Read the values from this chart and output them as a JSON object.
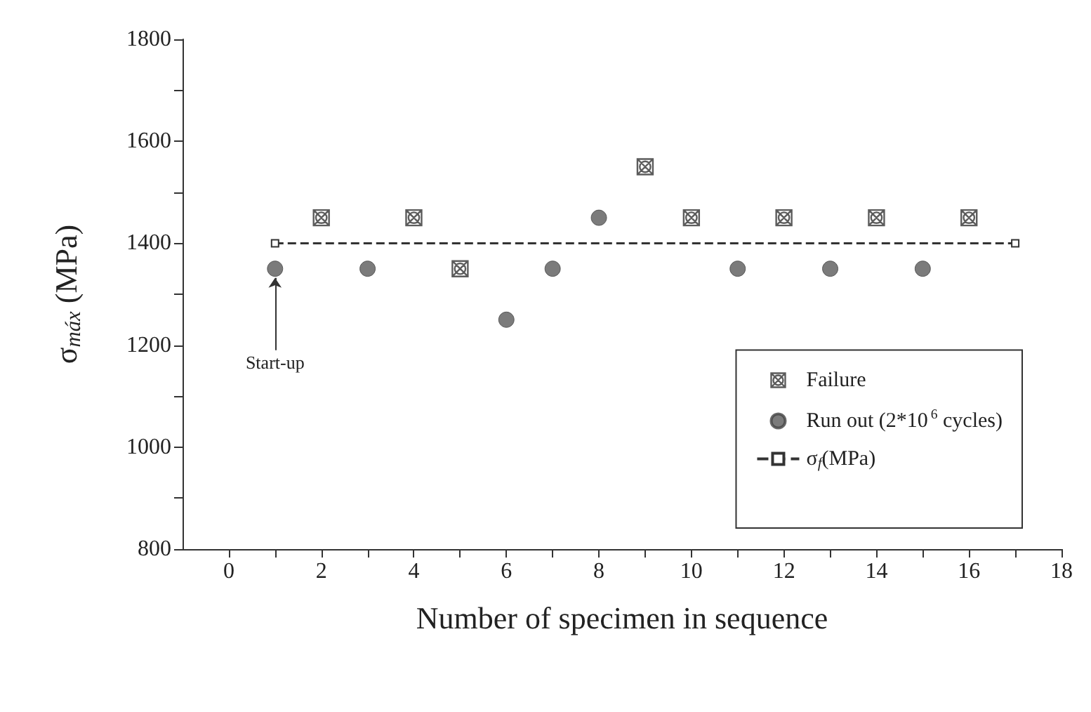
{
  "chart_data": {
    "type": "scatter",
    "xlabel": "Number of specimen in sequence",
    "ylabel": "σ$_{máx}$ (MPa)",
    "xlim": [
      -1,
      18
    ],
    "xticks": [
      0,
      {
        "value": 1,
        "label": null
      },
      2,
      {
        "value": 3,
        "label": null
      },
      4,
      {
        "value": 5,
        "label": null
      },
      6,
      {
        "value": 7,
        "label": null
      },
      8,
      {
        "value": 9,
        "label": null
      },
      10,
      {
        "value": 11,
        "label": null
      },
      12,
      {
        "value": 13,
        "label": null
      },
      14,
      {
        "value": 15,
        "label": null
      },
      16,
      {
        "value": 17,
        "label": null
      },
      18
    ],
    "ylim": [
      800,
      1800
    ],
    "yticks": [
      800,
      {
        "value": 900,
        "label": null
      },
      1000,
      {
        "value": 1100,
        "label": null
      },
      1200,
      {
        "value": 1300,
        "label": null
      },
      1400,
      {
        "value": 1500,
        "label": null
      },
      1600,
      {
        "value": 1700,
        "label": null
      },
      1800
    ],
    "grid": false,
    "legend": "bottom right",
    "annotations": [
      {
        "text": "Start-up",
        "x": 1,
        "y": 1350
      }
    ],
    "series": [
      {
        "name": "Failure",
        "marker": "cross",
        "color": "#333333",
        "x": [
          2,
          4,
          5,
          9,
          10,
          12,
          14,
          16
        ],
        "values": [
          1450,
          1450,
          1350,
          1550,
          1450,
          1450,
          1450,
          1450
        ]
      },
      {
        "name": "Run out (2*10$^{6}$ cycles)",
        "marker": "circle",
        "color": "#5a5a5a",
        "x": [
          1,
          3,
          6,
          7,
          8,
          11,
          13,
          15
        ],
        "values": [
          1350,
          1350,
          1250,
          1350,
          1450,
          1350,
          1350,
          1350
        ]
      },
      {
        "name": "σ$_{f}$(MPa)",
        "type": "line",
        "marker": "square",
        "line_style": "dashed",
        "color": "#333333",
        "x": [
          1,
          17
        ],
        "values": [
          1400,
          1400
        ]
      }
    ]
  }
}
